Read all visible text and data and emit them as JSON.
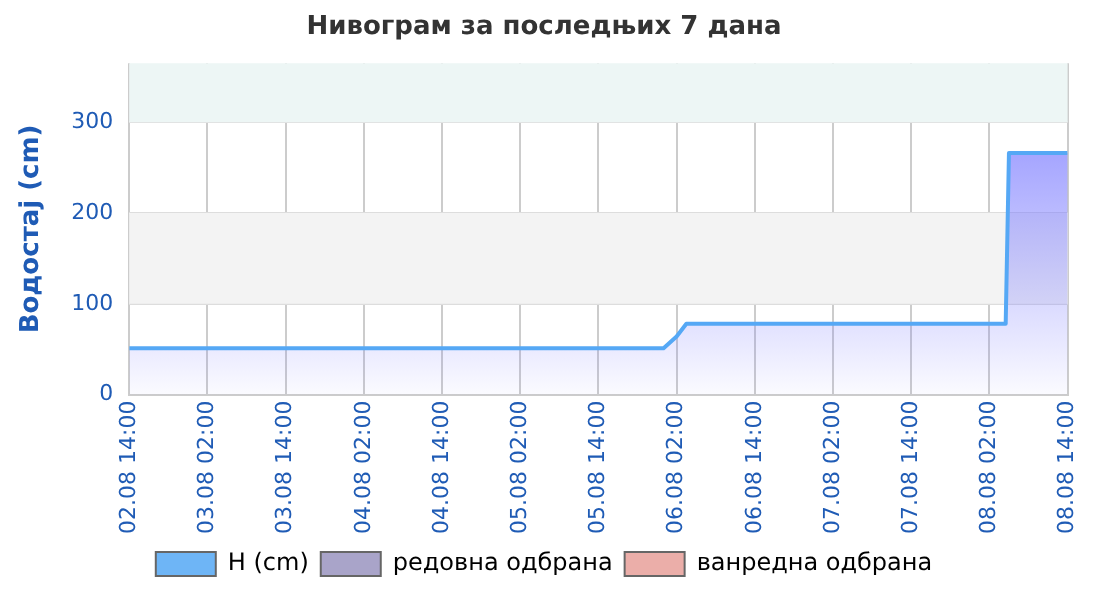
{
  "chart_data": {
    "type": "area",
    "title": "Нивограм за последњих 7 дана",
    "ylabel": "Водостај (cm)",
    "x": [
      "--08-02T14:00",
      "--08-06T00:00",
      "--08-06T02:00",
      "--08-06T03:30",
      "--08-08T04:30",
      "--08-08T05:00",
      "--08-08T14:00"
    ],
    "series": [
      {
        "name": "H (cm)",
        "color": "#55a8f5",
        "values": [
          51,
          51,
          64,
          78,
          78,
          266,
          266
        ]
      },
      {
        "name": "редовна одбрана",
        "color": "#9a94c0",
        "values": [
          null,
          null,
          null,
          null,
          null,
          null,
          null
        ]
      },
      {
        "name": "ванредна одбрана",
        "color": "#e8a09a",
        "values": [
          null,
          null,
          null,
          null,
          null,
          null,
          null
        ]
      }
    ],
    "xlim": [
      "--08-02T14:00",
      "--08-08T14:00"
    ],
    "xticks": [
      {
        "value": "--08-02T14:00",
        "label": "02.08 14:00"
      },
      {
        "value": "--08-03T02:00",
        "label": "03.08 02:00"
      },
      {
        "value": "--08-03T14:00",
        "label": "03.08 14:00"
      },
      {
        "value": "--08-04T02:00",
        "label": "04.08 02:00"
      },
      {
        "value": "--08-04T14:00",
        "label": "04.08 14:00"
      },
      {
        "value": "--08-05T02:00",
        "label": "05.08 02:00"
      },
      {
        "value": "--08-05T14:00",
        "label": "05.08 14:00"
      },
      {
        "value": "--08-06T02:00",
        "label": "06.08 02:00"
      },
      {
        "value": "--08-06T14:00",
        "label": "06.08 14:00"
      },
      {
        "value": "--08-07T02:00",
        "label": "07.08 02:00"
      },
      {
        "value": "--08-07T14:00",
        "label": "07.08 14:00"
      },
      {
        "value": "--08-08T02:00",
        "label": "08.08 02:00"
      },
      {
        "value": "--08-08T14:00",
        "label": "08.08 14:00"
      }
    ],
    "ylim": [
      0,
      365
    ],
    "yticks": [
      0,
      100,
      200,
      300
    ],
    "bands": [
      {
        "axis": "y",
        "from": 100,
        "to": 200,
        "color": "#f3f3f3"
      },
      {
        "axis": "y",
        "from": 300,
        "to": 365,
        "color": "#edf6f5"
      }
    ],
    "grid": true,
    "legend": "bottom",
    "marker": "none"
  }
}
